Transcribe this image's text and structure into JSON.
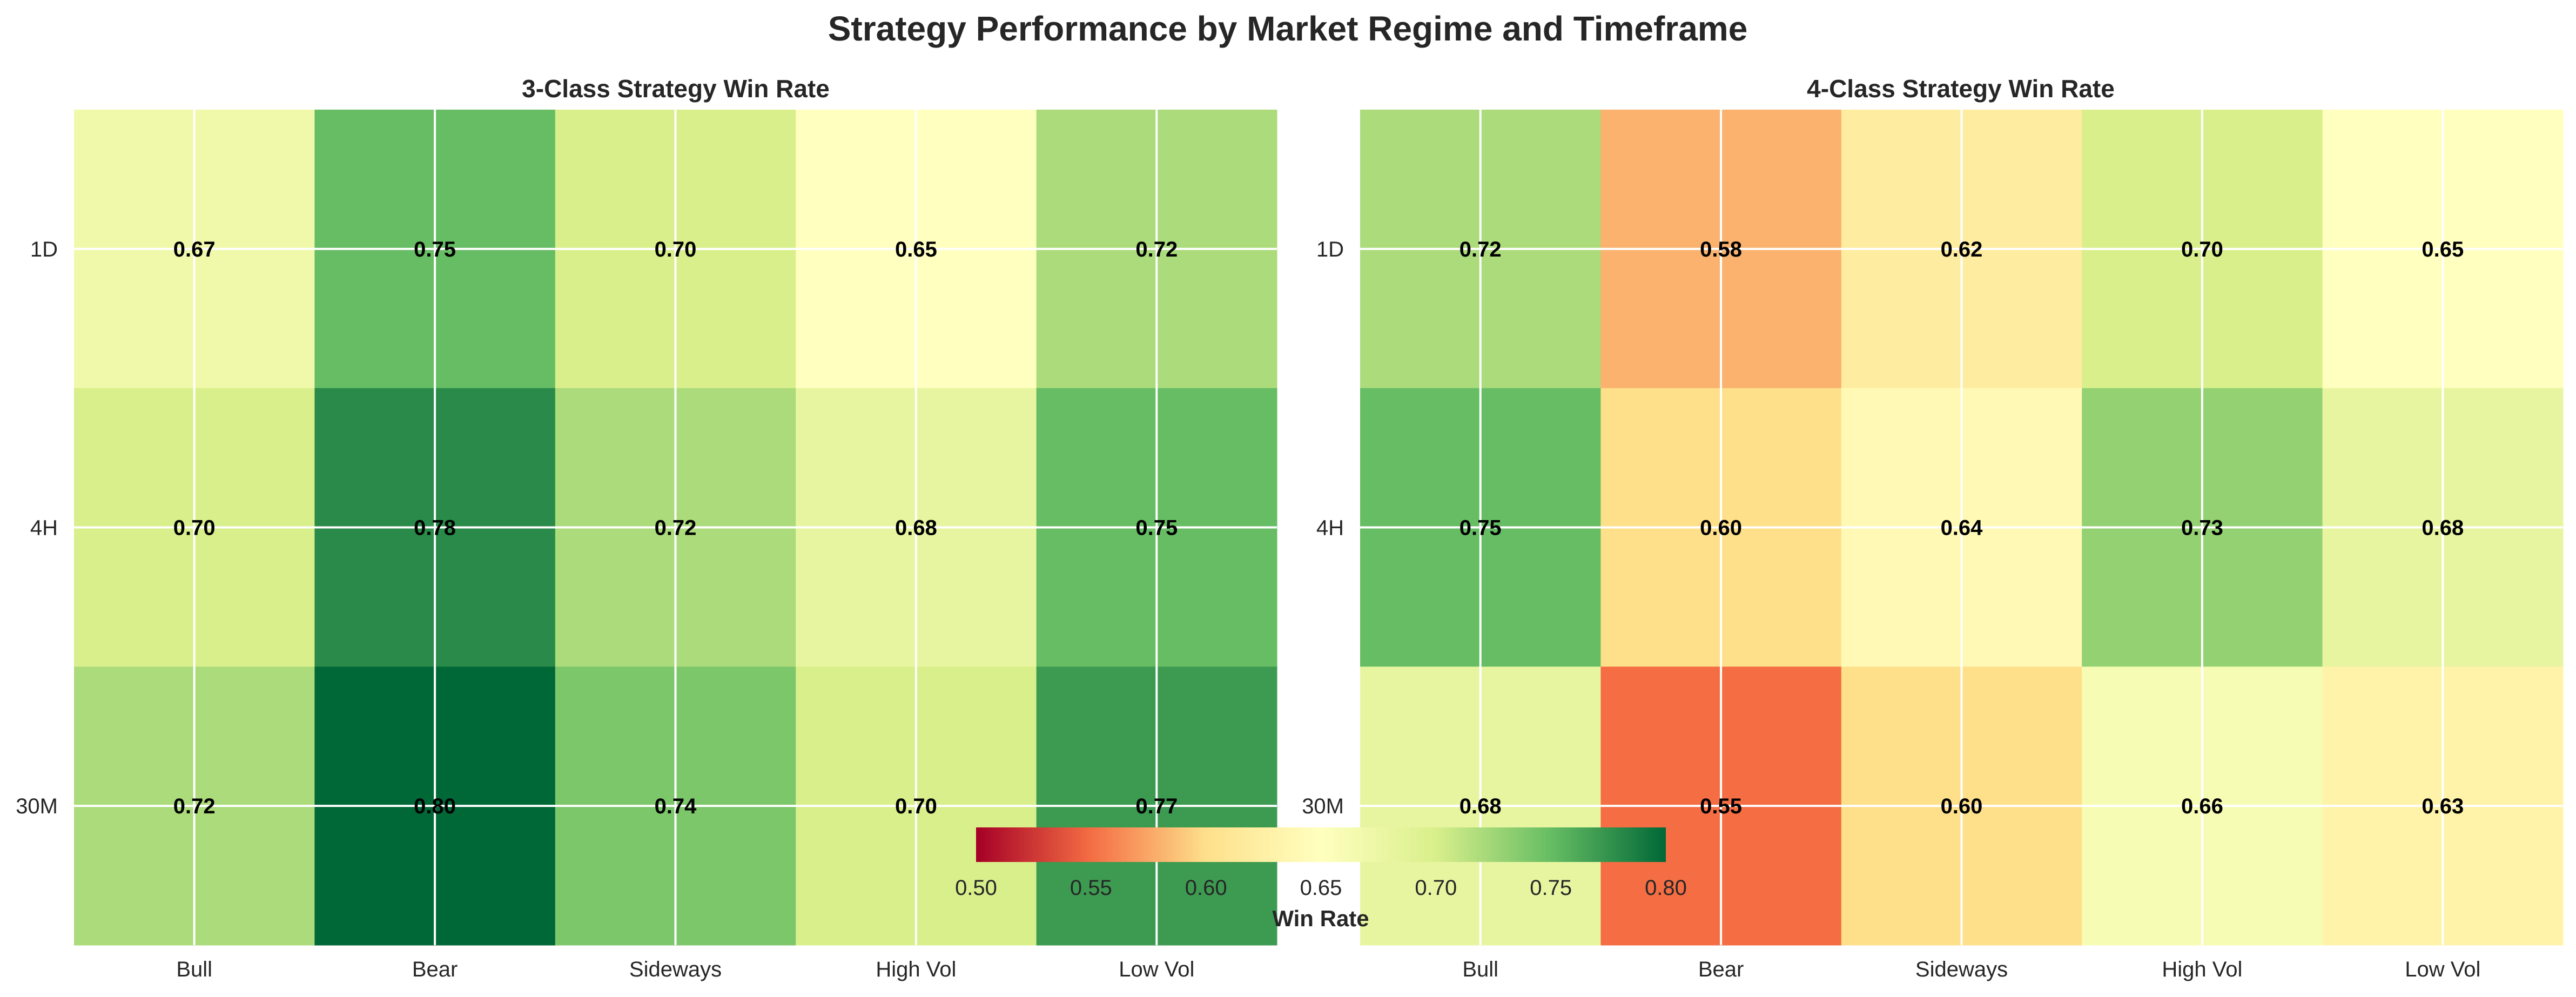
{
  "figure": {
    "title": "Strategy Performance by Market Regime and Timeframe"
  },
  "colorbar": {
    "label": "Win Rate",
    "ticks": [
      "0.50",
      "0.55",
      "0.60",
      "0.65",
      "0.70",
      "0.75",
      "0.80"
    ],
    "range": [
      0.5,
      0.8
    ],
    "colormap": [
      "#a50026",
      "#f46d43",
      "#fee08b",
      "#ffffbf",
      "#d9ef8b",
      "#66bd63",
      "#006837"
    ]
  },
  "chart_data": [
    {
      "type": "heatmap",
      "title": "3-Class Strategy Win Rate",
      "x": [
        "Bull",
        "Bear",
        "Sideways",
        "High Vol",
        "Low Vol"
      ],
      "y": [
        "1D",
        "4H",
        "30M"
      ],
      "values": [
        [
          0.67,
          0.75,
          0.7,
          0.65,
          0.72
        ],
        [
          0.7,
          0.78,
          0.72,
          0.68,
          0.75
        ],
        [
          0.72,
          0.8,
          0.74,
          0.7,
          0.77
        ]
      ],
      "value_labels": [
        [
          "0.67",
          "0.75",
          "0.70",
          "0.65",
          "0.72"
        ],
        [
          "0.70",
          "0.78",
          "0.72",
          "0.68",
          "0.75"
        ],
        [
          "0.72",
          "0.80",
          "0.74",
          "0.70",
          "0.77"
        ]
      ],
      "vmin": 0.5,
      "vmax": 0.8,
      "grid": true
    },
    {
      "type": "heatmap",
      "title": "4-Class Strategy Win Rate",
      "x": [
        "Bull",
        "Bear",
        "Sideways",
        "High Vol",
        "Low Vol"
      ],
      "y": [
        "1D",
        "4H",
        "30M"
      ],
      "values": [
        [
          0.72,
          0.58,
          0.62,
          0.7,
          0.65
        ],
        [
          0.75,
          0.6,
          0.64,
          0.73,
          0.68
        ],
        [
          0.68,
          0.55,
          0.6,
          0.66,
          0.63
        ]
      ],
      "value_labels": [
        [
          "0.72",
          "0.58",
          "0.62",
          "0.70",
          "0.65"
        ],
        [
          "0.75",
          "0.60",
          "0.64",
          "0.73",
          "0.68"
        ],
        [
          "0.68",
          "0.55",
          "0.60",
          "0.66",
          "0.63"
        ]
      ],
      "vmin": 0.5,
      "vmax": 0.8,
      "grid": true
    }
  ]
}
